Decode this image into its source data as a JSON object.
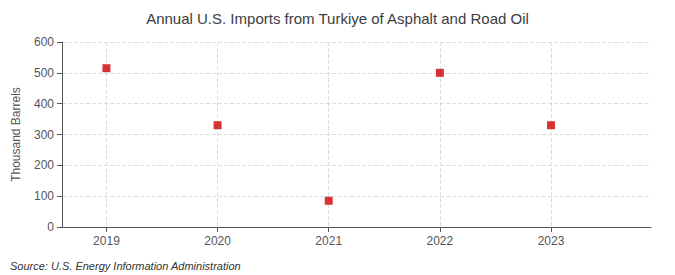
{
  "chart_data": {
    "type": "scatter",
    "title": "Annual U.S. Imports from Turkiye of Asphalt and Road Oil",
    "ylabel": "Thousand Barrels",
    "annotation": "Source: U.S. Energy Information Administration",
    "x": [
      2019,
      2020,
      2021,
      2022,
      2023
    ],
    "values": [
      515,
      330,
      85,
      500,
      330
    ],
    "color": "#cc0000",
    "marker": "square",
    "xlim": [
      2018.6,
      2023.9
    ],
    "xticks": [
      2019,
      2020,
      2021,
      2022,
      2023
    ],
    "ylim": [
      0,
      600
    ],
    "yticks": [
      0,
      100,
      200,
      300,
      400,
      500,
      600
    ],
    "grid": true
  }
}
